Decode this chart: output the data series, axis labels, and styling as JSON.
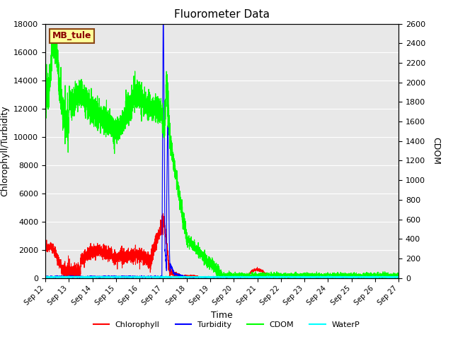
{
  "title": "Fluorometer Data",
  "ylabel_left": "Chlorophyll/Turbidity",
  "ylabel_right": "CDOM",
  "xlabel": "Time",
  "ylim_left": [
    0,
    18000
  ],
  "ylim_right": [
    0,
    2600
  ],
  "yticks_left": [
    0,
    2000,
    4000,
    6000,
    8000,
    10000,
    12000,
    14000,
    16000,
    18000
  ],
  "yticks_right": [
    0,
    200,
    400,
    600,
    800,
    1000,
    1200,
    1400,
    1600,
    1800,
    2000,
    2200,
    2400,
    2600
  ],
  "xlim": [
    0,
    15
  ],
  "xtick_labels": [
    "Sep 12",
    "Sep 13",
    "Sep 14",
    "Sep 15",
    "Sep 16",
    "Sep 17",
    "Sep 18",
    "Sep 19",
    "Sep 20",
    "Sep 21",
    "Sep 22",
    "Sep 23",
    "Sep 24",
    "Sep 25",
    "Sep 26",
    "Sep 27"
  ],
  "station_label": "MB_tule",
  "station_label_color": "#8B0000",
  "station_box_facecolor": "#FFFF99",
  "station_box_edgecolor": "#8B4513",
  "bg_color": "#E8E8E8",
  "line_colors": {
    "Chlorophyll": "red",
    "Turbidity": "blue",
    "CDOM": "#00FF00",
    "WaterP": "cyan"
  },
  "legend_entries": [
    "Chlorophyll",
    "Turbidity",
    "CDOM",
    "WaterP"
  ],
  "grid_color": "white",
  "title_fontsize": 11,
  "axis_fontsize": 9,
  "tick_fontsize": 8,
  "xtick_fontsize": 7
}
